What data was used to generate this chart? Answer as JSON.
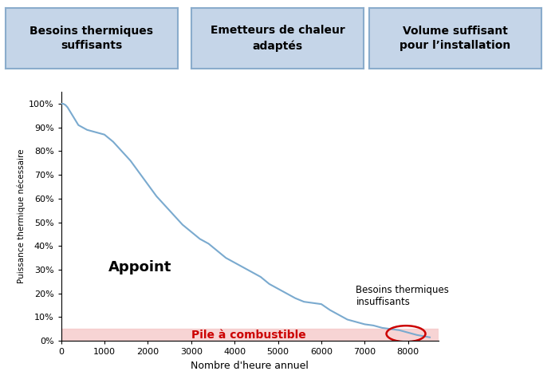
{
  "x_max": 8700,
  "y_ticks": [
    0,
    10,
    20,
    30,
    40,
    50,
    60,
    70,
    80,
    90,
    100
  ],
  "x_ticks": [
    0,
    1000,
    2000,
    3000,
    4000,
    5000,
    6000,
    7000,
    8000
  ],
  "xlabel": "Nombre d'heure annuel",
  "ylabel": "Puissance thermique nécessaire",
  "curve_color": "#7aaacf",
  "pile_fill_color": "#f5c6c6",
  "pile_text": "Pile à combustible",
  "pile_text_color": "#cc0000",
  "appoint_text": "Appoint",
  "besoins_insuff_text": "Besoins thermiques\ninsuffisants",
  "box1_text": "Besoins thermiques\nsuffisants",
  "box2_text": "Emetteurs de chaleur\nadaptés",
  "box3_text": "Volume suffisant\npour l’installation",
  "box_facecolor": "#c5d5e8",
  "box_edgecolor": "#8aaccc",
  "ellipse_color": "#cc0000",
  "curve_x": [
    0,
    50,
    100,
    150,
    200,
    300,
    400,
    500,
    600,
    700,
    800,
    900,
    1000,
    1200,
    1400,
    1600,
    1800,
    2000,
    2200,
    2400,
    2600,
    2800,
    3000,
    3200,
    3400,
    3600,
    3800,
    4000,
    4200,
    4400,
    4600,
    4800,
    5000,
    5200,
    5400,
    5600,
    5800,
    6000,
    6200,
    6400,
    6600,
    6800,
    7000,
    7200,
    7400,
    7600,
    7800,
    8000,
    8200,
    8500
  ],
  "curve_y": [
    100,
    100,
    99.5,
    98.5,
    97,
    94,
    91,
    90,
    89,
    88.5,
    88,
    87.5,
    87,
    84,
    80,
    76,
    71,
    66,
    61,
    57,
    53,
    49,
    46,
    43,
    41,
    38,
    35,
    33,
    31,
    29,
    27,
    24,
    22,
    20,
    18,
    16.5,
    16,
    15.5,
    13,
    11,
    9,
    8,
    7,
    6.5,
    5.5,
    5,
    4.5,
    3.5,
    2.5,
    1.5
  ]
}
